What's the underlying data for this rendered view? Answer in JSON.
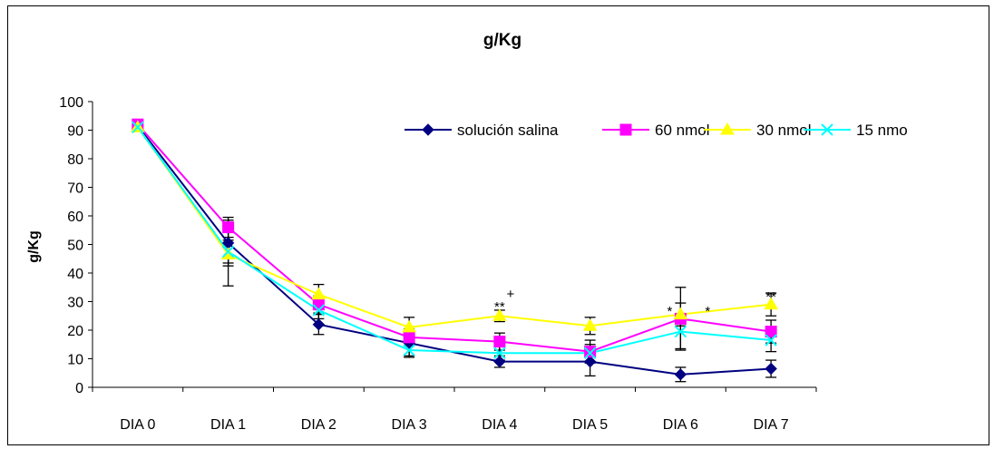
{
  "chart_data": {
    "type": "line",
    "title": "g/Kg",
    "xlabel": "",
    "ylabel": "g/Kg",
    "ylim": [
      0,
      100
    ],
    "yticks": [
      0,
      10,
      20,
      30,
      40,
      50,
      60,
      70,
      80,
      90,
      100
    ],
    "categories": [
      "DIA 0",
      "DIA 1",
      "DIA 2",
      "DIA 3",
      "DIA 4",
      "DIA 5",
      "DIA 6",
      "DIA 7"
    ],
    "legend_position": "top-right",
    "series": [
      {
        "name": "solución salina",
        "color": "#000080",
        "marker": "diamond",
        "values": [
          91.5,
          50.5,
          22,
          15.5,
          9,
          9,
          4.5,
          6.5
        ],
        "error": [
          0,
          8,
          3.5,
          4.5,
          2,
          5,
          2.5,
          3
        ]
      },
      {
        "name": "60 nmol",
        "color": "#ff00ff",
        "marker": "square",
        "values": [
          92,
          56,
          29,
          17.5,
          16,
          12.5,
          24,
          19.5
        ],
        "error": [
          0,
          3.5,
          3,
          3,
          3,
          4,
          11,
          4
        ]
      },
      {
        "name": "30 nmol",
        "color": "#ffff00",
        "marker": "triangle",
        "values": [
          91,
          46.5,
          32.5,
          21,
          25,
          21.5,
          25.5,
          29
        ],
        "error": [
          0,
          11,
          3.5,
          3.5,
          2,
          3,
          4,
          4
        ]
      },
      {
        "name": "15 nmo",
        "color": "#00ffff",
        "marker": "x",
        "values": [
          91,
          47.5,
          27,
          13,
          12,
          12,
          19.5,
          16.5
        ],
        "error": [
          0,
          4,
          3,
          2.5,
          2.5,
          3,
          6,
          4
        ]
      }
    ],
    "annotations": [
      {
        "text": "**",
        "category": "DIA 4",
        "y": 28.5
      },
      {
        "text": "+",
        "category": "DIA 4",
        "y": 33,
        "offset": 0.12
      },
      {
        "text": "*",
        "category": "DIA 6",
        "y": 27,
        "offset": -0.12
      },
      {
        "text": "*",
        "category": "DIA 6",
        "y": 27,
        "offset": 0.3
      },
      {
        "text": "**",
        "category": "DIA 7",
        "y": 32
      }
    ]
  }
}
